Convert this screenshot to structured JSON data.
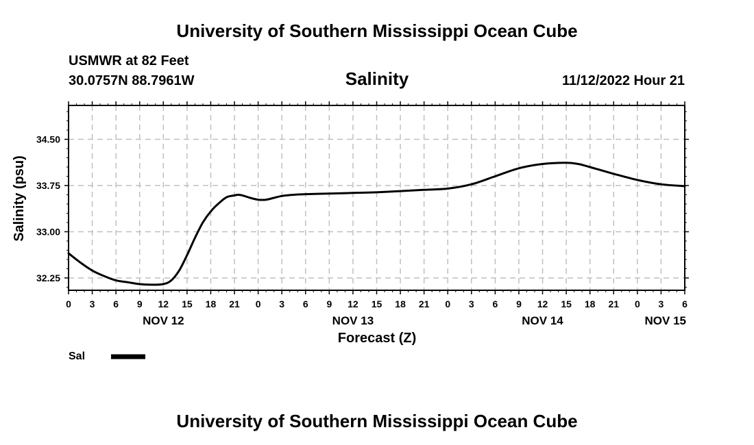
{
  "header": {
    "title": "University of Southern Mississippi Ocean Cube",
    "station": "USMWR at 82 Feet",
    "coords": "30.0757N  88.7961W",
    "timestamp": "11/12/2022 Hour 21"
  },
  "footer": {
    "title": "University of Southern Mississippi Ocean Cube"
  },
  "colors": {
    "line": "#000000",
    "grid": "#bfbfbf",
    "background": "#ffffff"
  },
  "chart_data": {
    "type": "line",
    "title": "Salinity",
    "xlabel": "Forecast (Z)",
    "ylabel": "Salinity (psu)",
    "x_unit": "hours since NOV 12 00Z",
    "xlim": [
      0,
      78
    ],
    "ylim": [
      32.05,
      35.05
    ],
    "y_ticks": [
      32.25,
      33.0,
      33.75,
      34.5
    ],
    "y_tick_labels": [
      "32.25",
      "33.00",
      "33.75",
      "34.50"
    ],
    "x_ticks": [
      0,
      3,
      6,
      9,
      12,
      15,
      18,
      21,
      24,
      27,
      30,
      33,
      36,
      39,
      42,
      45,
      48,
      51,
      54,
      57,
      60,
      63,
      66,
      69,
      72,
      75,
      78
    ],
    "x_tick_labels": [
      "0",
      "3",
      "6",
      "9",
      "12",
      "15",
      "18",
      "21",
      "0",
      "3",
      "6",
      "9",
      "12",
      "15",
      "18",
      "21",
      "0",
      "3",
      "6",
      "9",
      "12",
      "15",
      "18",
      "21",
      "0",
      "3",
      "6"
    ],
    "date_labels": [
      {
        "x": 12,
        "label": "NOV 12"
      },
      {
        "x": 36,
        "label": "NOV 13"
      },
      {
        "x": 60,
        "label": "NOV 14"
      },
      {
        "x": 78,
        "label": "NOV 15"
      }
    ],
    "grid": true,
    "legend_position": "bottom-left",
    "series": [
      {
        "name": "Sal",
        "x": [
          0,
          1.5,
          3,
          4.5,
          6,
          7.5,
          9,
          10.5,
          12,
          13,
          14,
          15,
          16,
          17,
          18,
          19,
          20,
          21,
          21.5,
          22,
          23,
          24,
          25,
          26,
          27,
          28.5,
          30,
          33,
          36,
          39,
          42,
          45,
          48,
          51,
          54,
          57,
          60,
          63,
          64.5,
          66,
          69,
          72,
          75,
          78
        ],
        "values": [
          32.65,
          32.5,
          32.37,
          32.28,
          32.21,
          32.18,
          32.15,
          32.14,
          32.15,
          32.21,
          32.37,
          32.62,
          32.9,
          33.15,
          33.33,
          33.46,
          33.56,
          33.59,
          33.6,
          33.59,
          33.55,
          33.52,
          33.52,
          33.55,
          33.58,
          33.6,
          33.61,
          33.62,
          33.63,
          33.64,
          33.66,
          33.68,
          33.7,
          33.77,
          33.9,
          34.03,
          34.1,
          34.12,
          34.1,
          34.05,
          33.94,
          33.84,
          33.77,
          33.74
        ]
      }
    ]
  }
}
